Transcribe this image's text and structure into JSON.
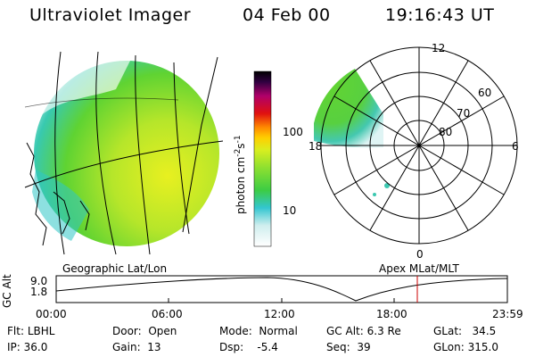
{
  "header": {
    "title": "Ultraviolet Imager",
    "date": "04 Feb 00",
    "time": "19:16:43 UT"
  },
  "colorbar": {
    "ticks": [
      "100",
      "10"
    ],
    "unit_label": "photon cm-2s-1",
    "unit_base": "photon cm",
    "unit_sup1": "-2",
    "unit_mid": "s",
    "unit_sup2": "-1"
  },
  "polar_plot": {
    "clock_labels": [
      "12",
      "6",
      "0",
      "18"
    ],
    "lat_labels": [
      "60",
      "70",
      "80"
    ]
  },
  "panel_labels": {
    "left": "Geographic Lat/Lon",
    "right": "Apex MLat/MLT"
  },
  "altitude_plot": {
    "axis_label": "GC Alt",
    "y_ticks": [
      "9.0",
      "1.8"
    ],
    "x_ticks": [
      "00:00",
      "06:00",
      "12:00",
      "18:00",
      "23:59"
    ]
  },
  "footer": {
    "flt_label": "Flt:",
    "flt_value": "LBHL",
    "ip_label": "IP:",
    "ip_value": "36.0",
    "door_label": "Door:",
    "door_value": "Open",
    "gain_label": "Gain:",
    "gain_value": "13",
    "mode_label": "Mode:",
    "mode_value": "Normal",
    "dsp_label": "Dsp:",
    "dsp_value": "-5.4",
    "gcalt_label": "GC Alt:",
    "gcalt_value": "6.3 Re",
    "seq_label": "Seq:",
    "seq_value": "39",
    "glat_label": "GLat:",
    "glat_value": "34.5",
    "glon_label": "GLon:",
    "glon_value": "315.0"
  },
  "colors": {
    "trace": "#000000",
    "time_marker": "#cc0000"
  }
}
